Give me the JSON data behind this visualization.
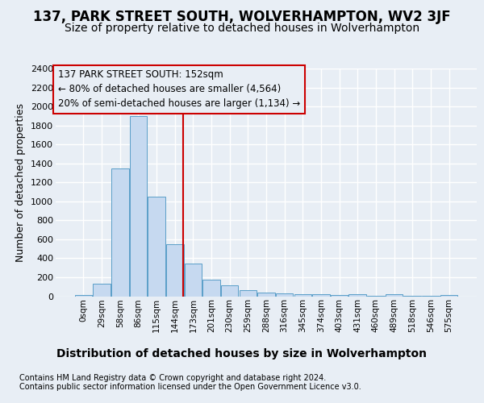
{
  "title": "137, PARK STREET SOUTH, WOLVERHAMPTON, WV2 3JF",
  "subtitle": "Size of property relative to detached houses in Wolverhampton",
  "xlabel": "Distribution of detached houses by size in Wolverhampton",
  "ylabel": "Number of detached properties",
  "footer_line1": "Contains HM Land Registry data © Crown copyright and database right 2024.",
  "footer_line2": "Contains public sector information licensed under the Open Government Licence v3.0.",
  "categories": [
    "0sqm",
    "29sqm",
    "58sqm",
    "86sqm",
    "115sqm",
    "144sqm",
    "173sqm",
    "201sqm",
    "230sqm",
    "259sqm",
    "288sqm",
    "316sqm",
    "345sqm",
    "374sqm",
    "403sqm",
    "431sqm",
    "460sqm",
    "489sqm",
    "518sqm",
    "546sqm",
    "575sqm"
  ],
  "values": [
    15,
    130,
    1350,
    1900,
    1050,
    550,
    340,
    175,
    115,
    65,
    40,
    30,
    25,
    20,
    15,
    20,
    2,
    18,
    2,
    2,
    15
  ],
  "bar_color": "#c6d9f0",
  "bar_edge_color": "#5a9ec8",
  "annotation_line_color": "#cc0000",
  "annotation_box_text_line1": "137 PARK STREET SOUTH: 152sqm",
  "annotation_box_text_line2": "← 80% of detached houses are smaller (4,564)",
  "annotation_box_text_line3": "20% of semi-detached houses are larger (1,134) →",
  "annotation_box_edge_color": "#cc0000",
  "ylim": [
    0,
    2400
  ],
  "yticks": [
    0,
    200,
    400,
    600,
    800,
    1000,
    1200,
    1400,
    1600,
    1800,
    2000,
    2200,
    2400
  ],
  "background_color": "#e8eef5",
  "grid_color": "#ffffff",
  "title_fontsize": 12,
  "subtitle_fontsize": 10,
  "ylabel_fontsize": 9,
  "xlabel_fontsize": 10,
  "tick_fontsize": 8,
  "xtick_fontsize": 7.5,
  "footer_fontsize": 7,
  "annotation_fontsize": 8.5
}
